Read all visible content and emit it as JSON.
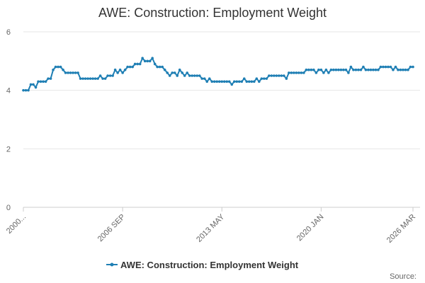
{
  "chart_data": {
    "type": "line",
    "title": "AWE: Construction: Employment Weight",
    "categories": [
      "2000...",
      null,
      null,
      null,
      null,
      null,
      null,
      null,
      null,
      null,
      null,
      null,
      null,
      null,
      null,
      null,
      null,
      null,
      null,
      null,
      null,
      null,
      null,
      null,
      null,
      null,
      null,
      null,
      null,
      null,
      null,
      null,
      null,
      null,
      null,
      null,
      null,
      null,
      null,
      null,
      "2006 SEP",
      null,
      null,
      null,
      null,
      null,
      null,
      null,
      null,
      null,
      null,
      null,
      null,
      null,
      null,
      null,
      null,
      null,
      null,
      null,
      null,
      null,
      null,
      null,
      null,
      null,
      null,
      null,
      null,
      null,
      null,
      null,
      null,
      null,
      null,
      null,
      null,
      null,
      null,
      null,
      "2013 MAY",
      null,
      null,
      null,
      null,
      null,
      null,
      null,
      null,
      null,
      null,
      null,
      null,
      null,
      null,
      null,
      null,
      null,
      null,
      null,
      null,
      null,
      null,
      null,
      null,
      null,
      null,
      null,
      null,
      null,
      null,
      null,
      null,
      null,
      null,
      null,
      null,
      null,
      null,
      null,
      "2020 JAN",
      null,
      null,
      null,
      null,
      null,
      null,
      null,
      null,
      null,
      null,
      null,
      null,
      null,
      null,
      null,
      null,
      null,
      null,
      null,
      null,
      null,
      null,
      null,
      null,
      null,
      null,
      null,
      null,
      null,
      null,
      null,
      null,
      null,
      null,
      null,
      null,
      "2026 MAR"
    ],
    "series": [
      {
        "name": "AWE: Construction: Employment Weight",
        "color": "#1f7fb4",
        "values": [
          4.0,
          4.0,
          4.0,
          4.2,
          4.2,
          4.1,
          4.3,
          4.3,
          4.3,
          4.3,
          4.4,
          4.4,
          4.7,
          4.8,
          4.8,
          4.8,
          4.7,
          4.6,
          4.6,
          4.6,
          4.6,
          4.6,
          4.6,
          4.4,
          4.4,
          4.4,
          4.4,
          4.4,
          4.4,
          4.4,
          4.4,
          4.5,
          4.4,
          4.4,
          4.5,
          4.5,
          4.5,
          4.7,
          4.6,
          4.7,
          4.6,
          4.7,
          4.8,
          4.8,
          4.8,
          4.9,
          4.9,
          4.9,
          5.1,
          5.0,
          5.0,
          5.0,
          5.1,
          4.9,
          4.8,
          4.8,
          4.8,
          4.7,
          4.6,
          4.5,
          4.6,
          4.6,
          4.5,
          4.7,
          4.6,
          4.5,
          4.6,
          4.5,
          4.5,
          4.5,
          4.5,
          4.5,
          4.4,
          4.4,
          4.3,
          4.4,
          4.3,
          4.3,
          4.3,
          4.3,
          4.3,
          4.3,
          4.3,
          4.3,
          4.2,
          4.3,
          4.3,
          4.3,
          4.3,
          4.4,
          4.3,
          4.3,
          4.3,
          4.3,
          4.4,
          4.3,
          4.4,
          4.4,
          4.4,
          4.5,
          4.5,
          4.5,
          4.5,
          4.5,
          4.5,
          4.5,
          4.4,
          4.6,
          4.6,
          4.6,
          4.6,
          4.6,
          4.6,
          4.6,
          4.7,
          4.7,
          4.7,
          4.7,
          4.6,
          4.7,
          4.7,
          4.6,
          4.7,
          4.6,
          4.7,
          4.7,
          4.7,
          4.7,
          4.7,
          4.7,
          4.7,
          4.6,
          4.8,
          4.7,
          4.7,
          4.7,
          4.7,
          4.8,
          4.7,
          4.7,
          4.7,
          4.7,
          4.7,
          4.7,
          4.8,
          4.8,
          4.8,
          4.8,
          4.8,
          4.7,
          4.8,
          4.7,
          4.7,
          4.7,
          4.7,
          4.7,
          4.8,
          4.8
        ]
      }
    ],
    "ylim": [
      0,
      6
    ],
    "yticks": [
      0,
      2,
      4,
      6
    ],
    "grid": true,
    "source": "Source:"
  }
}
